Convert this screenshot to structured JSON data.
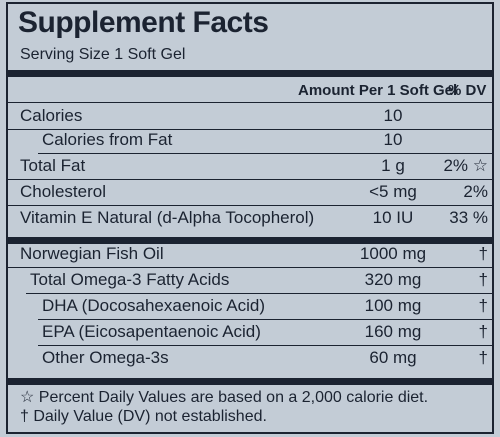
{
  "header": {
    "title": "Supplement Facts",
    "serving_size": "Serving Size 1 Soft Gel"
  },
  "table": {
    "columns": [
      "Amount Per 1 Soft Gel",
      "% DV"
    ],
    "rows": [
      [
        "Calories",
        "10",
        ""
      ],
      [
        "Calories from Fat",
        "10",
        ""
      ],
      [
        "Total Fat",
        "1 g",
        "2% ☆"
      ],
      [
        "Cholesterol",
        "<5 mg",
        "2%"
      ],
      [
        "Vitamin E Natural (d-Alpha Tocopherol)",
        "10 IU",
        "33 %"
      ],
      [
        "Norwegian Fish Oil",
        "1000 mg",
        "†"
      ],
      [
        "Total Omega-3 Fatty Acids",
        "320 mg",
        "†"
      ],
      [
        "DHA (Docosahexaenoic Acid)",
        "100 mg",
        "†"
      ],
      [
        "EPA (Eicosapentaenoic Acid)",
        "160 mg",
        "†"
      ],
      [
        "Other Omega-3s",
        "60 mg",
        "†"
      ]
    ]
  },
  "footnotes": [
    "☆ Percent Daily Values are based on a 2,000 calorie diet.",
    "† Daily Value (DV) not established."
  ]
}
